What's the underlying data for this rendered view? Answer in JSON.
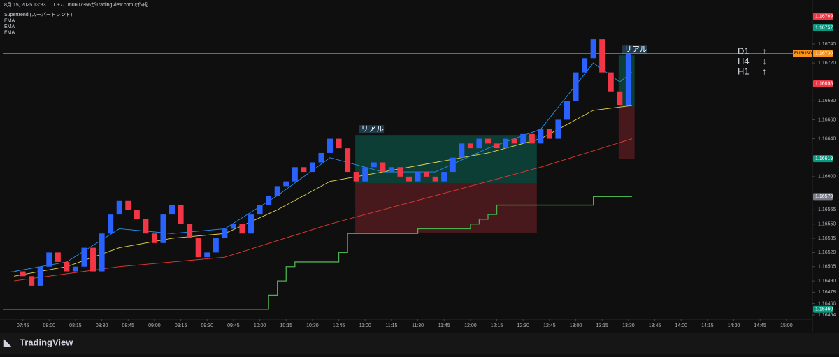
{
  "chart_data": {
    "type": "candlestick",
    "header": "8月 15, 2025 13:33 UTC+7、m0607366がTradingView.comで作成",
    "brand": "TradingView",
    "xlim": [
      454,
      914
    ],
    "xticks": [
      {
        "value": 465,
        "label": "07:45"
      },
      {
        "value": 480,
        "label": "08:00"
      },
      {
        "value": 495,
        "label": "08:15"
      },
      {
        "value": 510,
        "label": "08:30"
      },
      {
        "value": 525,
        "label": "08:45"
      },
      {
        "value": 540,
        "label": "09:00"
      },
      {
        "value": 555,
        "label": "09:15"
      },
      {
        "value": 570,
        "label": "09:30"
      },
      {
        "value": 585,
        "label": "09:45"
      },
      {
        "value": 600,
        "label": "10:00"
      },
      {
        "value": 615,
        "label": "10:15"
      },
      {
        "value": 630,
        "label": "10:30"
      },
      {
        "value": 645,
        "label": "10:45"
      },
      {
        "value": 660,
        "label": "11:00"
      },
      {
        "value": 675,
        "label": "11:15"
      },
      {
        "value": 690,
        "label": "11:30"
      },
      {
        "value": 705,
        "label": "11:45"
      },
      {
        "value": 720,
        "label": "12:00"
      },
      {
        "value": 735,
        "label": "12:15"
      },
      {
        "value": 750,
        "label": "12:30"
      },
      {
        "value": 765,
        "label": "12:45"
      },
      {
        "value": 780,
        "label": "13:00"
      },
      {
        "value": 795,
        "label": "13:15"
      },
      {
        "value": 810,
        "label": "13:30"
      },
      {
        "value": 825,
        "label": "13:45"
      },
      {
        "value": 840,
        "label": "14:00"
      },
      {
        "value": 855,
        "label": "14:15"
      },
      {
        "value": 870,
        "label": "14:30"
      },
      {
        "value": 885,
        "label": "14:45"
      },
      {
        "value": 900,
        "label": "15:00"
      }
    ],
    "ylim": [
      1.16451,
      1.16779
    ],
    "yticks": [
      {
        "value": 1.1674,
        "label": "1.16740"
      },
      {
        "value": 1.1672,
        "label": "1.16720"
      },
      {
        "value": 1.1668,
        "label": "1.16680"
      },
      {
        "value": 1.1666,
        "label": "1.16660"
      },
      {
        "value": 1.1664,
        "label": "1.16640"
      },
      {
        "value": 1.166,
        "label": "1.16600"
      },
      {
        "value": 1.16565,
        "label": "1.16565"
      },
      {
        "value": 1.1655,
        "label": "1.16550"
      },
      {
        "value": 1.16535,
        "label": "1.16535"
      },
      {
        "value": 1.1652,
        "label": "1.16520"
      },
      {
        "value": 1.16505,
        "label": "1.16505"
      },
      {
        "value": 1.1649,
        "label": "1.16490"
      },
      {
        "value": 1.16478,
        "label": "1.16478"
      },
      {
        "value": 1.16466,
        "label": "1.16466"
      },
      {
        "value": 1.16454,
        "label": "1.16454"
      }
    ],
    "color_up": "#2962ff",
    "color_down": "#f23645",
    "x": [
      460,
      465,
      470,
      475,
      480,
      485,
      490,
      495,
      500,
      505,
      510,
      515,
      520,
      525,
      530,
      535,
      540,
      545,
      550,
      555,
      560,
      565,
      570,
      575,
      580,
      585,
      590,
      595,
      600,
      605,
      610,
      615,
      620,
      625,
      630,
      635,
      640,
      645,
      650,
      655,
      660,
      665,
      670,
      675,
      680,
      685,
      690,
      695,
      700,
      705,
      710,
      715,
      720,
      725,
      730,
      735,
      740,
      745,
      750,
      755,
      760,
      765,
      770,
      775,
      780,
      785,
      790,
      795,
      800,
      805,
      810
    ],
    "close": [
      1.165,
      1.16495,
      1.16485,
      1.16505,
      1.1652,
      1.1651,
      1.165,
      1.16505,
      1.16525,
      1.165,
      1.1654,
      1.1656,
      1.16575,
      1.16565,
      1.16555,
      1.1654,
      1.1653,
      1.1656,
      1.1657,
      1.1655,
      1.16535,
      1.16515,
      1.1652,
      1.16535,
      1.16545,
      1.1655,
      1.1654,
      1.1656,
      1.1657,
      1.1658,
      1.1659,
      1.16595,
      1.1661,
      1.16605,
      1.16615,
      1.16625,
      1.1664,
      1.1663,
      1.16605,
      1.16595,
      1.1661,
      1.16615,
      1.16605,
      1.1661,
      1.166,
      1.16595,
      1.16605,
      1.166,
      1.16595,
      1.16605,
      1.1662,
      1.16635,
      1.1663,
      1.1664,
      1.16635,
      1.1663,
      1.1664,
      1.16635,
      1.16645,
      1.16635,
      1.1665,
      1.1664,
      1.1666,
      1.1668,
      1.1671,
      1.16725,
      1.16745,
      1.1671,
      1.1669,
      1.16675,
      1.1673
    ],
    "series": [
      {
        "name": "Supertrend (スーパートレンド)",
        "color": "#4caf50",
        "step": true,
        "x": [
          454,
          600,
          605,
          610,
          615,
          620,
          640,
          645,
          650,
          680,
          690,
          700,
          720,
          725,
          730,
          735,
          745,
          785,
          790,
          812
        ],
        "values": [
          1.1646,
          1.1646,
          1.16475,
          1.1649,
          1.16505,
          1.1651,
          1.1651,
          1.1652,
          1.1654,
          1.1654,
          1.16545,
          1.16545,
          1.1655,
          1.16555,
          1.1656,
          1.1657,
          1.1657,
          1.1657,
          1.16579,
          1.16579
        ]
      },
      {
        "name": "EMA",
        "color": "#2196f3",
        "x": [
          460,
          490,
          520,
          550,
          580,
          610,
          640,
          670,
          700,
          730,
          760,
          790,
          805,
          812
        ],
        "values": [
          1.165,
          1.1651,
          1.16545,
          1.1654,
          1.16545,
          1.1658,
          1.1662,
          1.16605,
          1.16605,
          1.1663,
          1.1665,
          1.1672,
          1.167,
          1.1671
        ]
      },
      {
        "name": "EMA",
        "color": "#e6d84a",
        "x": [
          460,
          490,
          520,
          550,
          580,
          610,
          640,
          670,
          700,
          730,
          760,
          790,
          812
        ],
        "values": [
          1.16495,
          1.16505,
          1.16525,
          1.16535,
          1.1654,
          1.16565,
          1.16595,
          1.16605,
          1.16615,
          1.16625,
          1.1664,
          1.1667,
          1.16675
        ]
      },
      {
        "name": "EMA",
        "color": "#e53935",
        "x": [
          460,
          520,
          580,
          640,
          700,
          760,
          812
        ],
        "values": [
          1.1649,
          1.16505,
          1.16515,
          1.1655,
          1.1658,
          1.1661,
          1.1664
        ]
      }
    ],
    "boxes": [
      {
        "label": "リアル",
        "x": [
          654.4,
          757.8
        ],
        "top": 1.16644,
        "mid": 1.16593,
        "bottom": 1.16541
      },
      {
        "label": "リアル",
        "x": [
          804.4,
          813.5
        ],
        "top": 1.16728,
        "mid": 1.16674,
        "bottom": 1.16619
      }
    ],
    "price_tags": [
      {
        "value": 1.16769,
        "label": "1.16769",
        "color": "#f23645"
      },
      {
        "value": 1.16757,
        "label": "1.16757",
        "color": "#089981"
      },
      {
        "name": "EURUSD",
        "value": 1.1673,
        "label": "1.16730",
        "color": "#f7931a"
      },
      {
        "value": 1.16698,
        "label": "1.16698",
        "color": "#f23645"
      },
      {
        "value": 1.16619,
        "label": "1.16619",
        "color": "#089981"
      },
      {
        "value": 1.16579,
        "label": "1.16579",
        "color": "#787b86"
      },
      {
        "value": 1.1646,
        "label": "1.16460",
        "color": "#089981"
      }
    ],
    "timeframes": [
      {
        "label": "D1",
        "arrow": "↑"
      },
      {
        "label": "H4",
        "arrow": "↓"
      },
      {
        "label": "H1",
        "arrow": "↑"
      }
    ]
  }
}
